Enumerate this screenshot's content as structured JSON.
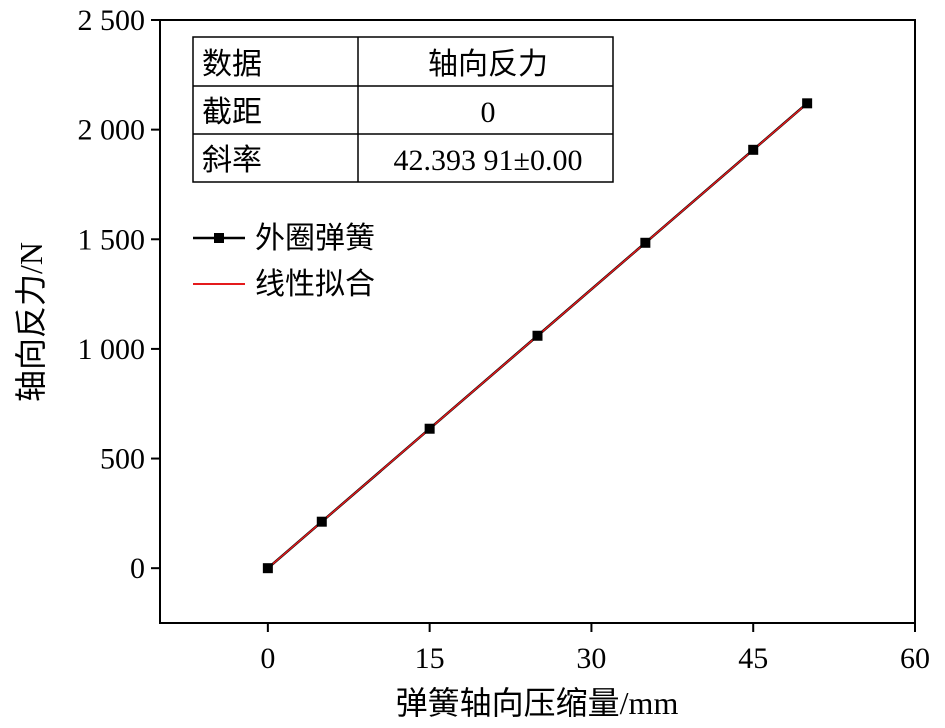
{
  "chart_data": {
    "type": "scatter",
    "xlabel": "弹簧轴向压缩量/mm",
    "ylabel": "轴向反力/N",
    "xlim": [
      -10,
      60
    ],
    "ylim": [
      -250,
      2500
    ],
    "x_ticks": [
      0,
      15,
      30,
      45,
      60
    ],
    "x_tick_labels": [
      "0",
      "15",
      "30",
      "45",
      "60"
    ],
    "y_ticks": [
      0,
      500,
      1000,
      1500,
      2000,
      2500
    ],
    "y_tick_labels": [
      "0",
      "500",
      "1 000",
      "1 500",
      "2 000",
      "2 500"
    ],
    "series": [
      {
        "name": "外圈弹簧",
        "kind": "line+marker",
        "color": "#000000",
        "x": [
          0,
          5,
          15,
          25,
          35,
          45,
          50
        ],
        "y": [
          0,
          212,
          636,
          1060,
          1484,
          1908,
          2120
        ]
      },
      {
        "name": "线性拟合",
        "kind": "line",
        "color": "#e41a1c",
        "intercept": 0,
        "slope": 42.39391,
        "x_range": [
          0,
          50
        ]
      }
    ],
    "legend": {
      "position": "top-left"
    },
    "fit_table": {
      "header": [
        "数据",
        "轴向反力"
      ],
      "rows": [
        [
          "截距",
          "0"
        ],
        [
          "斜率",
          "42.393 91±0.00"
        ]
      ]
    },
    "grid": false
  }
}
